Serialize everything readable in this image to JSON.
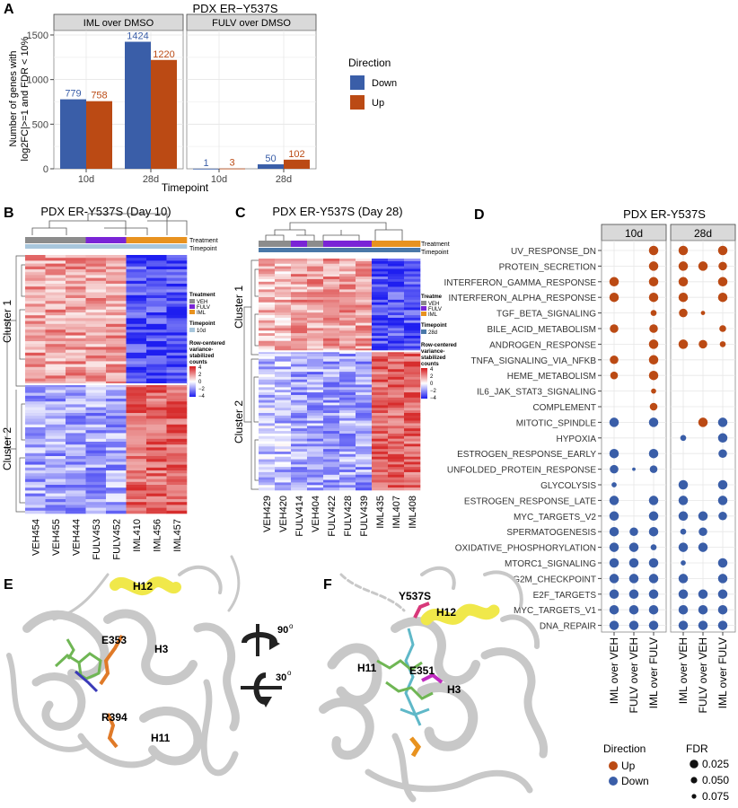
{
  "panel_letters": [
    "A",
    "B",
    "C",
    "D",
    "E",
    "F"
  ],
  "colors": {
    "down": "#3a5ea8",
    "up": "#bb4a14",
    "strip": "#d9d9d9",
    "veh": "#8c8c8c",
    "fulv": "#7a24d6",
    "iml": "#e8921f",
    "tp10": "#a8c6dc",
    "tp28": "#4a78a8"
  },
  "chart_data": [
    {
      "type": "bar",
      "title": "PDX ER−Y537S",
      "facets": [
        "IML over DMSO",
        "FULV over DMSO"
      ],
      "categories": [
        "10d",
        "28d"
      ],
      "series": [
        {
          "name": "Down",
          "values": [
            [
              779,
              1424
            ],
            [
              1,
              50
            ]
          ]
        },
        {
          "name": "Up",
          "values": [
            [
              758,
              1220
            ],
            [
              3,
              102
            ]
          ]
        }
      ],
      "xlabel": "Timepoint",
      "ylabel_lines": [
        "Number of genes with",
        "log2FC|>=1 and FDR < 10%"
      ],
      "ylim": [
        0,
        1550
      ],
      "yticks": [
        0,
        500,
        1000,
        1500
      ],
      "legend_title": "Direction",
      "legend": [
        "Down",
        "Up"
      ],
      "legend_position": "right"
    },
    {
      "type": "heatmap",
      "title": "PDX ER-Y537S (Day 10)",
      "columns": [
        "VEH454",
        "VEH455",
        "VEH444",
        "FULV453",
        "FULV452",
        "IML410",
        "IML456",
        "IML457"
      ],
      "row_clusters": [
        "Cluster 1",
        "Cluster 2"
      ],
      "track_labels": [
        "Treatment",
        "Timepoint"
      ],
      "legend": {
        "treatment_title": "Treatment",
        "treatment": [
          "VEH",
          "FULV",
          "IML"
        ],
        "timepoint_title": "Timepoint",
        "timepoint": [
          "10d"
        ],
        "scale_title_lines": [
          "Row-centered",
          "variance-",
          "stabilized",
          "counts"
        ],
        "scale_ticks": [
          "4",
          "2",
          "0",
          "−2",
          "−4"
        ]
      }
    },
    {
      "type": "heatmap",
      "title": "PDX ER-Y537S (Day 28)",
      "columns": [
        "VEH429",
        "VEH420",
        "FULV414",
        "VEH404",
        "FULV422",
        "FULV428",
        "FULV439",
        "IML435",
        "IML407",
        "IML408"
      ],
      "row_clusters": [
        "Cluster 1",
        "Cluster 2"
      ],
      "track_labels": [
        "Treatment",
        "Timepoint"
      ],
      "legend": {
        "treatment_title": "Treatme",
        "treatment": [
          "VEH",
          "FULV",
          "IML"
        ],
        "timepoint_title": "Timepoint",
        "timepoint": [
          "28d"
        ],
        "scale_title_lines": [
          "Row-centered",
          "variance-",
          "stabilized",
          "counts"
        ],
        "scale_ticks": [
          "4",
          "2",
          "0",
          "−2",
          "−4"
        ]
      }
    },
    {
      "type": "scatter",
      "title": "PDX ER-Y537S",
      "facets": [
        "10d",
        "28d"
      ],
      "comparisons": [
        "IML over VEH",
        "FULV over VEH",
        "IML over FULV"
      ],
      "pathways": [
        "UV_RESPONSE_DN",
        "PROTEIN_SECRETION",
        "INTERFERON_GAMMA_RESPONSE",
        "INTERFERON_ALPHA_RESPONSE",
        "TGF_BETA_SIGNALING",
        "BILE_ACID_METABOLISM",
        "ANDROGEN_RESPONSE",
        "TNFA_SIGNALING_VIA_NFKB",
        "HEME_METABOLISM",
        "IL6_JAK_STAT3_SIGNALING",
        "COMPLEMENT",
        "MITOTIC_SPINDLE",
        "HYPOXIA",
        "ESTROGEN_RESPONSE_EARLY",
        "UNFOLDED_PROTEIN_RESPONSE",
        "GLYCOLYSIS",
        "ESTROGEN_RESPONSE_LATE",
        "MYC_TARGETS_V2",
        "SPERMATOGENESIS",
        "OXIDATIVE_PHOSPHORYLATION",
        "MTORC1_SIGNALING",
        "G2M_CHECKPOINT",
        "E2F_TARGETS",
        "MYC_TARGETS_V1",
        "DNA_REPAIR"
      ],
      "points": [
        [
          0,
          0,
          2,
          "Up",
          0.02
        ],
        [
          0,
          1,
          0,
          "Up",
          0.02
        ],
        [
          0,
          1,
          2,
          "Up",
          0.02
        ],
        [
          1,
          0,
          2,
          "Up",
          0.02
        ],
        [
          1,
          1,
          0,
          "Up",
          0.02
        ],
        [
          1,
          1,
          1,
          "Up",
          0.02
        ],
        [
          1,
          1,
          2,
          "Up",
          0.03
        ],
        [
          2,
          0,
          0,
          "Up",
          0.02
        ],
        [
          2,
          0,
          2,
          "Up",
          0.02
        ],
        [
          2,
          1,
          0,
          "Up",
          0.02
        ],
        [
          2,
          1,
          2,
          "Up",
          0.02
        ],
        [
          3,
          0,
          0,
          "Up",
          0.02
        ],
        [
          3,
          0,
          2,
          "Up",
          0.02
        ],
        [
          3,
          1,
          0,
          "Up",
          0.02
        ],
        [
          3,
          1,
          2,
          "Up",
          0.02
        ],
        [
          4,
          0,
          2,
          "Up",
          0.06
        ],
        [
          4,
          1,
          0,
          "Up",
          0.03
        ],
        [
          4,
          1,
          1,
          "Up",
          0.08
        ],
        [
          5,
          0,
          0,
          "Up",
          0.03
        ],
        [
          5,
          0,
          2,
          "Up",
          0.03
        ],
        [
          5,
          1,
          2,
          "Up",
          0.05
        ],
        [
          6,
          0,
          2,
          "Up",
          0.02
        ],
        [
          6,
          1,
          0,
          "Up",
          0.02
        ],
        [
          6,
          1,
          1,
          "Up",
          0.03
        ],
        [
          6,
          1,
          2,
          "Up",
          0.06
        ],
        [
          7,
          0,
          0,
          "Up",
          0.03
        ],
        [
          7,
          0,
          2,
          "Up",
          0.02
        ],
        [
          8,
          0,
          0,
          "Up",
          0.04
        ],
        [
          8,
          0,
          2,
          "Up",
          0.02
        ],
        [
          9,
          0,
          2,
          "Up",
          0.07
        ],
        [
          10,
          0,
          2,
          "Up",
          0.04
        ],
        [
          11,
          0,
          0,
          "Down",
          0.02
        ],
        [
          11,
          0,
          2,
          "Down",
          0.02
        ],
        [
          11,
          1,
          1,
          "Up",
          0.02
        ],
        [
          11,
          1,
          2,
          "Down",
          0.02
        ],
        [
          12,
          1,
          0,
          "Down",
          0.06
        ],
        [
          12,
          1,
          2,
          "Down",
          0.02
        ],
        [
          13,
          0,
          0,
          "Down",
          0.02
        ],
        [
          13,
          0,
          2,
          "Down",
          0.02
        ],
        [
          13,
          1,
          2,
          "Down",
          0.03
        ],
        [
          14,
          0,
          0,
          "Down",
          0.03
        ],
        [
          14,
          0,
          1,
          "Down",
          0.09
        ],
        [
          14,
          0,
          2,
          "Down",
          0.04
        ],
        [
          15,
          0,
          0,
          "Down",
          0.07
        ],
        [
          15,
          1,
          0,
          "Down",
          0.02
        ],
        [
          15,
          1,
          2,
          "Down",
          0.02
        ],
        [
          16,
          0,
          0,
          "Down",
          0.02
        ],
        [
          16,
          0,
          2,
          "Down",
          0.02
        ],
        [
          16,
          1,
          0,
          "Down",
          0.02
        ],
        [
          16,
          1,
          2,
          "Down",
          0.02
        ],
        [
          17,
          0,
          0,
          "Down",
          0.02
        ],
        [
          17,
          0,
          2,
          "Down",
          0.02
        ],
        [
          17,
          1,
          0,
          "Down",
          0.02
        ],
        [
          17,
          1,
          1,
          "Down",
          0.02
        ],
        [
          17,
          1,
          2,
          "Down",
          0.03
        ],
        [
          18,
          0,
          0,
          "Down",
          0.02
        ],
        [
          18,
          0,
          1,
          "Down",
          0.03
        ],
        [
          18,
          0,
          2,
          "Down",
          0.02
        ],
        [
          18,
          1,
          0,
          "Down",
          0.06
        ],
        [
          18,
          1,
          1,
          "Down",
          0.03
        ],
        [
          19,
          0,
          0,
          "Down",
          0.02
        ],
        [
          19,
          0,
          1,
          "Down",
          0.02
        ],
        [
          19,
          0,
          2,
          "Down",
          0.06
        ],
        [
          19,
          1,
          0,
          "Down",
          0.02
        ],
        [
          19,
          1,
          1,
          "Down",
          0.02
        ],
        [
          20,
          0,
          0,
          "Down",
          0.02
        ],
        [
          20,
          0,
          1,
          "Down",
          0.02
        ],
        [
          20,
          0,
          2,
          "Down",
          0.02
        ],
        [
          20,
          1,
          0,
          "Down",
          0.07
        ],
        [
          20,
          1,
          2,
          "Down",
          0.02
        ],
        [
          21,
          0,
          0,
          "Down",
          0.02
        ],
        [
          21,
          0,
          1,
          "Down",
          0.02
        ],
        [
          21,
          0,
          2,
          "Down",
          0.02
        ],
        [
          21,
          1,
          0,
          "Down",
          0.02
        ],
        [
          21,
          1,
          2,
          "Down",
          0.02
        ],
        [
          22,
          0,
          0,
          "Down",
          0.02
        ],
        [
          22,
          0,
          1,
          "Down",
          0.02
        ],
        [
          22,
          0,
          2,
          "Down",
          0.02
        ],
        [
          22,
          1,
          0,
          "Down",
          0.02
        ],
        [
          22,
          1,
          1,
          "Down",
          0.02
        ],
        [
          22,
          1,
          2,
          "Down",
          0.02
        ],
        [
          23,
          0,
          0,
          "Down",
          0.02
        ],
        [
          23,
          0,
          1,
          "Down",
          0.02
        ],
        [
          23,
          0,
          2,
          "Down",
          0.02
        ],
        [
          23,
          1,
          0,
          "Down",
          0.02
        ],
        [
          23,
          1,
          1,
          "Down",
          0.02
        ],
        [
          23,
          1,
          2,
          "Down",
          0.02
        ],
        [
          24,
          0,
          0,
          "Down",
          0.02
        ],
        [
          24,
          0,
          1,
          "Down",
          0.02
        ],
        [
          24,
          0,
          2,
          "Down",
          0.02
        ],
        [
          24,
          1,
          0,
          "Down",
          0.02
        ],
        [
          24,
          1,
          1,
          "Down",
          0.02
        ],
        [
          24,
          1,
          2,
          "Down",
          0.02
        ]
      ],
      "color_legend_title": "Direction",
      "color_legend": [
        "Up",
        "Down"
      ],
      "size_legend_title": "FDR",
      "size_legend": [
        "0.025",
        "0.050",
        "0.075"
      ]
    }
  ],
  "structure_e": {
    "labels": [
      "H12",
      "E353",
      "H3",
      "R394",
      "H11"
    ]
  },
  "structure_f": {
    "labels": [
      "Y537S",
      "H12",
      "H11",
      "E351",
      "H3"
    ]
  },
  "rotation": {
    "labels": [
      "90",
      "o",
      "30",
      "o"
    ]
  }
}
